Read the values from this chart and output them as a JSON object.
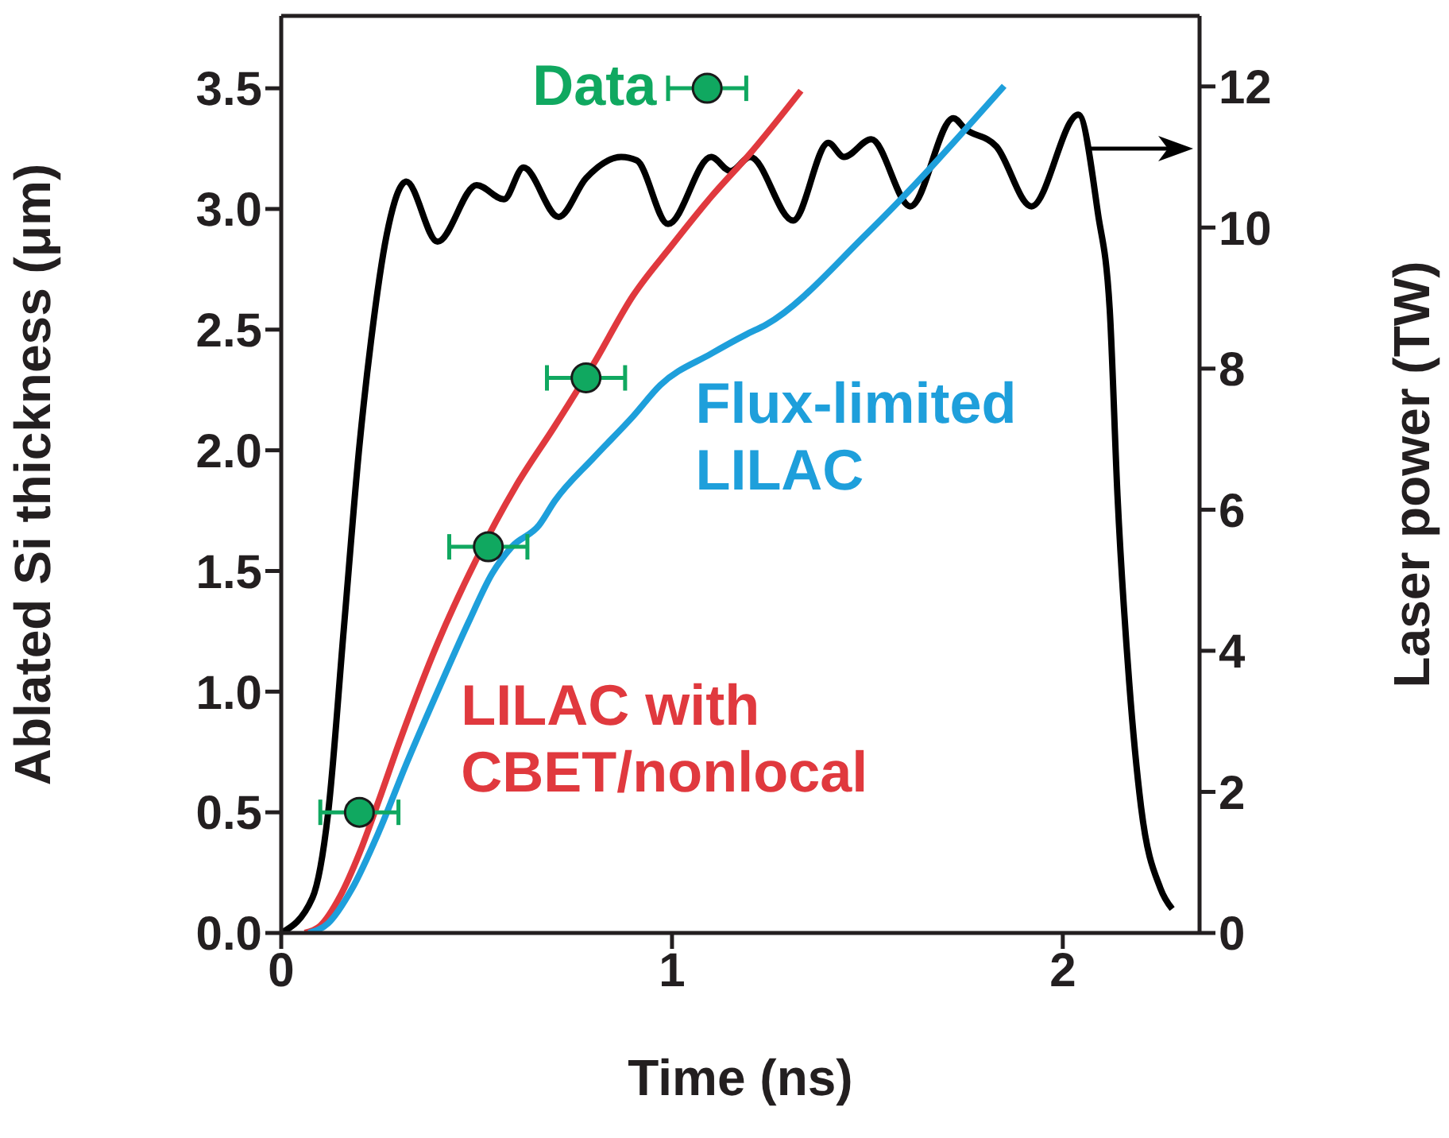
{
  "chart_data": {
    "type": "line",
    "xlabel": "Time (ns)",
    "ylabel": "Ablated Si thickness (μm)",
    "y2label": "Laser power (TW)",
    "xlim": [
      0,
      2.35
    ],
    "xticks": [
      0,
      1,
      2
    ],
    "ylim": [
      0,
      3.8
    ],
    "yticks": [
      {
        "value": 0,
        "label": "0.0"
      },
      {
        "value": 0.5,
        "label": "0.5"
      },
      {
        "value": 1,
        "label": "1.0"
      },
      {
        "value": 1.5,
        "label": "1.5"
      },
      {
        "value": 2,
        "label": "2.0"
      },
      {
        "value": 2.5,
        "label": "2.5"
      },
      {
        "value": 3,
        "label": "3.0"
      },
      {
        "value": 3.5,
        "label": "3.5"
      }
    ],
    "y2lim": [
      0,
      13
    ],
    "y2ticks": [
      0,
      2,
      4,
      6,
      8,
      10,
      12
    ],
    "series": [
      {
        "axis": "y2",
        "color": "#000000",
        "x": [
          0,
          0.08,
          0.12,
          0.16,
          0.2,
          0.23,
          0.27,
          0.32,
          0.4,
          0.5,
          0.57,
          0.62,
          0.71,
          0.78,
          0.87,
          0.91,
          0.99,
          1.1,
          1.15,
          1.2,
          1.31,
          1.4,
          1.44,
          1.51,
          1.61,
          1.72,
          1.75,
          1.83,
          1.92,
          2.04,
          2.09,
          2.12,
          2.14,
          2.17,
          2.2,
          2.25,
          2.28
        ],
        "values": [
          0,
          0.5,
          1.7,
          4.3,
          6.9,
          8.4,
          9.9,
          10.65,
          9.8,
          10.6,
          10.4,
          10.85,
          10.15,
          10.7,
          11,
          10.95,
          10.05,
          11,
          10.8,
          11,
          10.1,
          11.2,
          11,
          11.25,
          10.3,
          11.55,
          11.4,
          11.15,
          10.3,
          11.6,
          10.2,
          8.85,
          6.2,
          3.55,
          1.8,
          0.63,
          0.34
        ]
      },
      {
        "name": "LILAC with CBET/nonlocal",
        "color": "#e0393e",
        "x": [
          0.06,
          0.1,
          0.15,
          0.2,
          0.25,
          0.3,
          0.4,
          0.5,
          0.6,
          0.7,
          0.8,
          0.9,
          1.0,
          1.1,
          1.2,
          1.33
        ],
        "values": [
          0,
          0.03,
          0.15,
          0.33,
          0.55,
          0.78,
          1.2,
          1.55,
          1.85,
          2.1,
          2.36,
          2.64,
          2.85,
          3.05,
          3.23,
          3.49
        ]
      },
      {
        "name": "Flux-limited LILAC",
        "color": "#1e9fdb",
        "x": [
          0.07,
          0.12,
          0.18,
          0.25,
          0.32,
          0.4,
          0.48,
          0.54,
          0.59,
          0.66,
          0.7,
          0.8,
          0.9,
          0.97,
          1.1,
          1.19,
          1.24,
          1.5,
          1.85
        ],
        "values": [
          0,
          0.04,
          0.18,
          0.42,
          0.7,
          1,
          1.29,
          1.49,
          1.6,
          1.69,
          1.79,
          1.97,
          2.14,
          2.27,
          2.4,
          2.48,
          2.52,
          2.9,
          3.51
        ]
      },
      {
        "type": "scatter",
        "name": "Data",
        "color": "#10a860",
        "marker": "circle",
        "x": [
          0.2,
          0.53,
          0.78,
          1.09
        ],
        "values": [
          0.5,
          1.6,
          2.3,
          3.5
        ],
        "xerrors": [
          0.1,
          0.1,
          0.1,
          0.1
        ]
      }
    ]
  }
}
